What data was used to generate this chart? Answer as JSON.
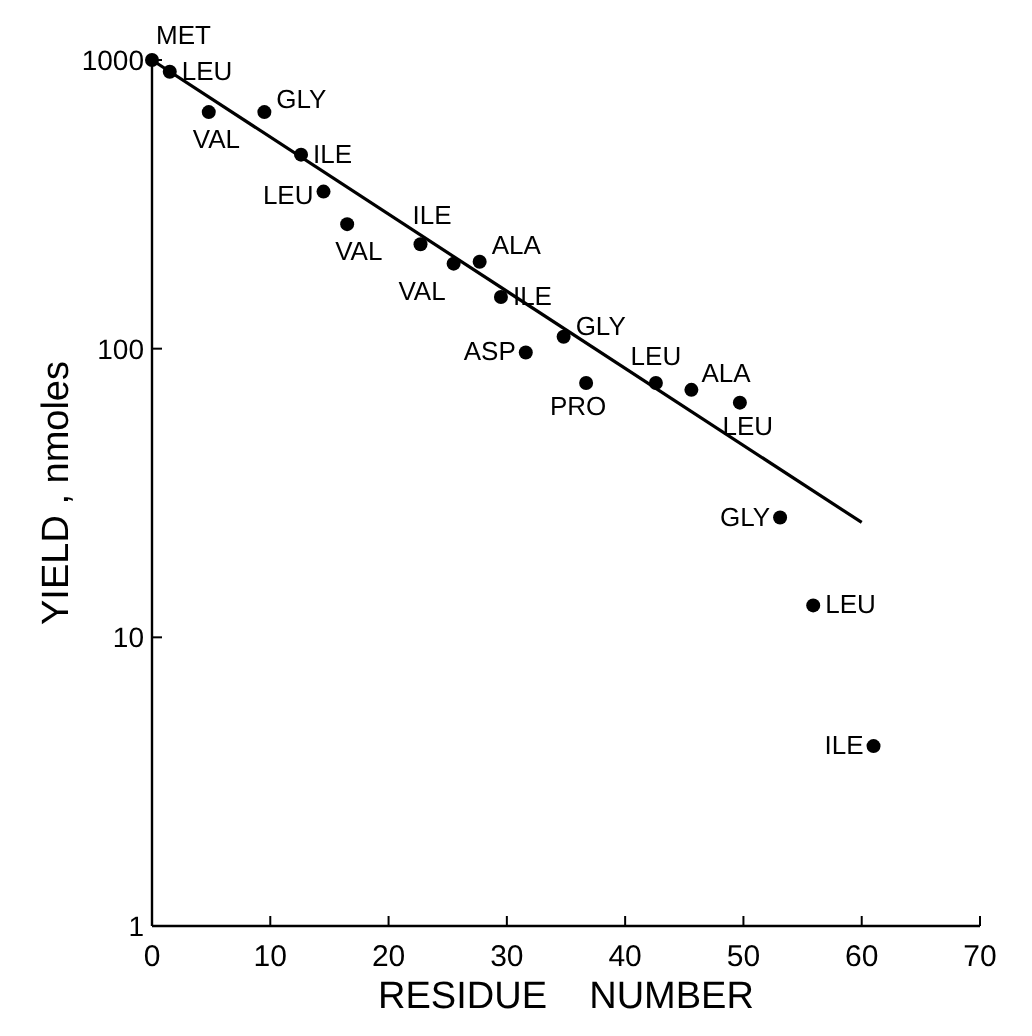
{
  "chart_data": {
    "type": "scatter",
    "xlabel": "RESIDUE    NUMBER",
    "ylabel": "YIELD , nmoles",
    "xlim": [
      0,
      70
    ],
    "xticks": [
      0,
      10,
      20,
      30,
      40,
      50,
      60,
      70
    ],
    "ylim": [
      1,
      1000
    ],
    "yticks": [
      1,
      10,
      100,
      1000
    ],
    "log": "y",
    "grid": false,
    "series": [
      {
        "marker": "circle",
        "color": "#000000",
        "x": [
          0,
          1.5,
          4.8,
          9.5,
          12.6,
          14.5,
          16.5,
          22.7,
          25.5,
          27.7,
          29.5,
          31.6,
          34.8,
          36.7,
          42.6,
          45.6,
          49.7,
          53.1,
          55.9,
          61
        ],
        "values": [
          1000,
          910,
          660,
          660,
          470,
          350,
          270,
          230,
          197,
          200,
          151,
          97,
          110,
          76,
          76,
          72,
          65,
          26,
          12.9,
          4.2
        ]
      },
      {
        "type": "line",
        "color": "#000000",
        "line_style": "solid",
        "x": [
          0,
          60
        ],
        "values": [
          1000,
          25
        ]
      }
    ],
    "annotations": [
      {
        "text": "MET",
        "x": 0,
        "y": 1000
      },
      {
        "text": "LEU",
        "x": 1.5,
        "y": 910
      },
      {
        "text": "VAL",
        "x": 4.8,
        "y": 660
      },
      {
        "text": "GLY",
        "x": 9.5,
        "y": 660
      },
      {
        "text": "ILE",
        "x": 12.6,
        "y": 470
      },
      {
        "text": "LEU",
        "x": 14.5,
        "y": 350
      },
      {
        "text": "VAL",
        "x": 16.5,
        "y": 270
      },
      {
        "text": "ILE",
        "x": 22.7,
        "y": 230
      },
      {
        "text": "VAL",
        "x": 25.5,
        "y": 197
      },
      {
        "text": "ALA",
        "x": 27.7,
        "y": 200
      },
      {
        "text": "ILE",
        "x": 29.5,
        "y": 151
      },
      {
        "text": "ASP",
        "x": 31.6,
        "y": 97
      },
      {
        "text": "GLY",
        "x": 34.8,
        "y": 110
      },
      {
        "text": "PRO",
        "x": 36.7,
        "y": 76
      },
      {
        "text": "LEU",
        "x": 42.6,
        "y": 76
      },
      {
        "text": "ALA",
        "x": 45.6,
        "y": 72
      },
      {
        "text": "LEU",
        "x": 49.7,
        "y": 65
      },
      {
        "text": "GLY",
        "x": 53.1,
        "y": 26
      },
      {
        "text": "LEU",
        "x": 55.9,
        "y": 12.9
      },
      {
        "text": "ILE",
        "x": 61,
        "y": 4.2
      }
    ]
  }
}
